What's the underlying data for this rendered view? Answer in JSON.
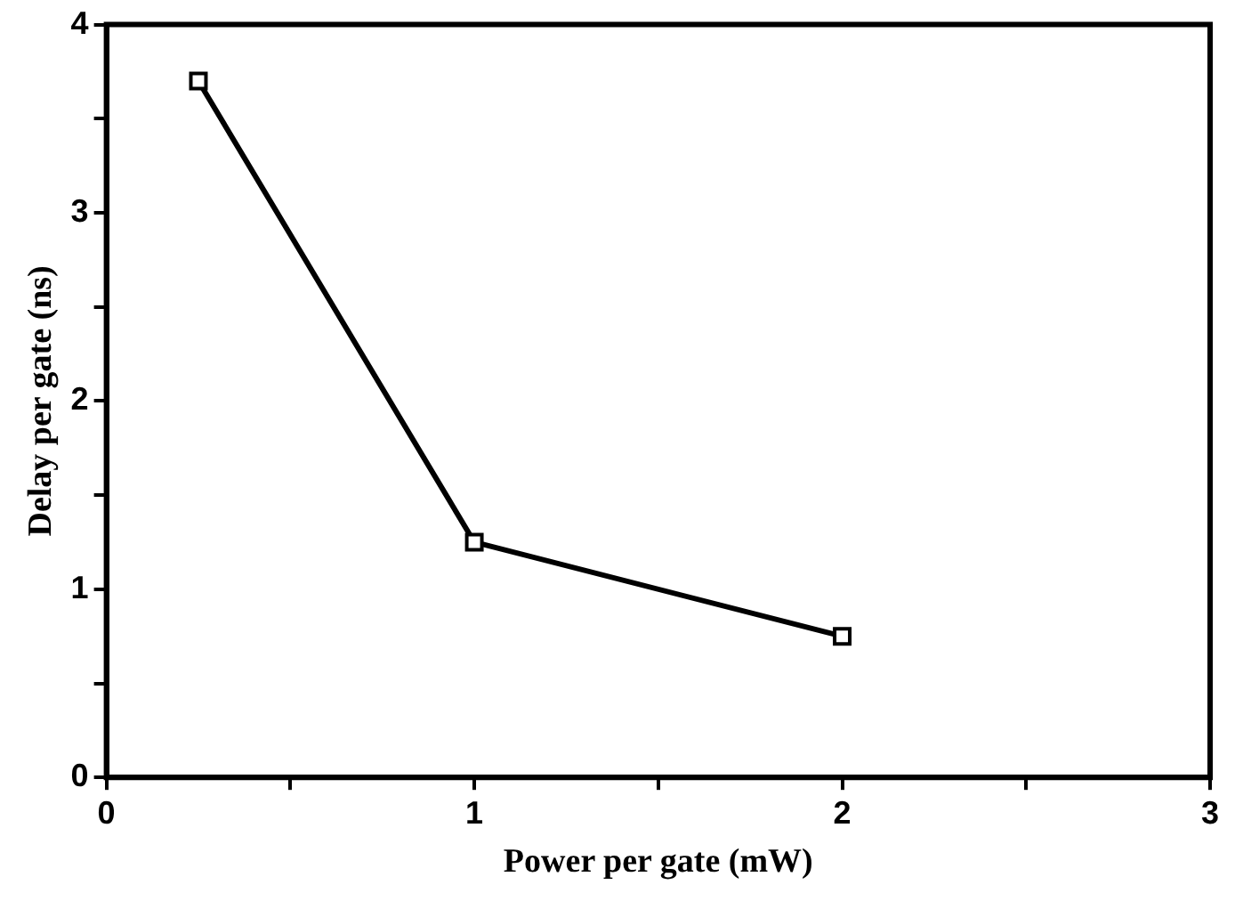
{
  "chart_data": {
    "type": "line",
    "xlabel": "Power per gate (mW)",
    "ylabel": "Delay per gate (ns)",
    "x": [
      0.25,
      1,
      2
    ],
    "series": [
      {
        "color": "#000000",
        "values": [
          3.7,
          1.25,
          0.75
        ]
      }
    ],
    "xlim": [
      0,
      3
    ],
    "xticks": [
      0,
      {
        "value": 0.5,
        "label": null
      },
      1,
      {
        "value": 1.5,
        "label": null
      },
      2,
      {
        "value": 2.5,
        "label": null
      },
      3
    ],
    "ylim": [
      0,
      4
    ],
    "yticks": [
      0,
      {
        "value": 0.5,
        "label": null
      },
      1,
      {
        "value": 1.5,
        "label": null
      },
      2,
      {
        "value": 2.5,
        "label": null
      },
      3,
      {
        "value": 3.5,
        "label": null
      },
      4
    ],
    "grid": false,
    "legend": false,
    "marker": "square",
    "line_style": "solid"
  }
}
